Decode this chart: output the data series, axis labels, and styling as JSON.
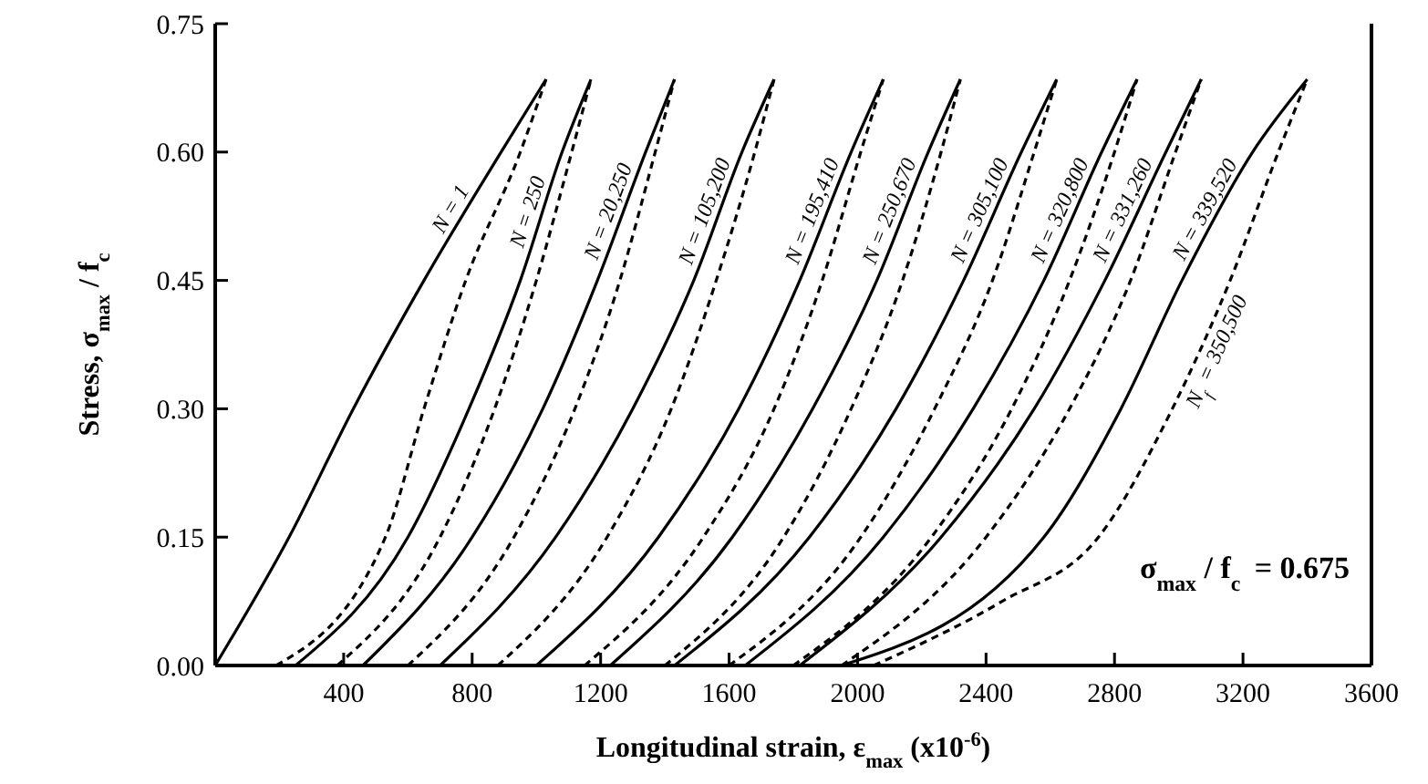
{
  "chart_data": {
    "type": "line",
    "xlabel": "Longitudinal strain, ε$_{max}$ (x10$^{-6}$)",
    "ylabel": "Stress, σ$_{max}$ / f$_{c}$",
    "xlim": [
      0,
      3600
    ],
    "xticks": [
      400,
      800,
      1200,
      1600,
      2000,
      2400,
      2800,
      3200,
      3600
    ],
    "ylim": [
      0,
      0.75
    ],
    "yticks": [
      {
        "value": 0,
        "label": "0.00"
      },
      {
        "value": 0.15,
        "label": "0.15"
      },
      {
        "value": 0.3,
        "label": "0.30"
      },
      {
        "value": 0.45,
        "label": "0.45"
      },
      {
        "value": 0.6,
        "label": "0.60"
      },
      {
        "value": 0.75,
        "label": "0.75"
      }
    ],
    "grid": false,
    "marker": "none",
    "annotations": [
      "σ$_{max}$ / f$_{c}$ = 0.675"
    ],
    "series": [
      {
        "name": "N = 1",
        "color": "#000000",
        "line_style": "solid",
        "x": [
          0,
          230,
          430,
          650,
          890,
          1030
        ],
        "values": [
          0,
          0.15,
          0.3,
          0.45,
          0.6,
          0.685
        ]
      },
      {
        "color": "#000000",
        "line_style": "dashed",
        "x": [
          190,
          530,
          650,
          780,
          950,
          1030
        ],
        "values": [
          0,
          0.15,
          0.3,
          0.45,
          0.6,
          0.685
        ]
      },
      {
        "name": "N = 250",
        "color": "#000000",
        "line_style": "solid",
        "x": [
          250,
          600,
          790,
          950,
          1080,
          1170
        ],
        "values": [
          0,
          0.15,
          0.3,
          0.45,
          0.6,
          0.685
        ]
      },
      {
        "color": "#000000",
        "line_style": "dashed",
        "x": [
          380,
          700,
          870,
          1000,
          1110,
          1170
        ],
        "values": [
          0,
          0.15,
          0.3,
          0.45,
          0.6,
          0.685
        ]
      },
      {
        "name": "N = 20,250",
        "color": "#000000",
        "line_style": "solid",
        "x": [
          460,
          800,
          1020,
          1190,
          1340,
          1430
        ],
        "values": [
          0,
          0.15,
          0.3,
          0.45,
          0.6,
          0.685
        ]
      },
      {
        "color": "#000000",
        "line_style": "dashed",
        "x": [
          600,
          930,
          1120,
          1260,
          1370,
          1430
        ],
        "values": [
          0,
          0.15,
          0.3,
          0.45,
          0.6,
          0.685
        ]
      },
      {
        "name": "N = 105,200",
        "color": "#000000",
        "line_style": "solid",
        "x": [
          700,
          1060,
          1300,
          1490,
          1640,
          1740
        ],
        "values": [
          0,
          0.15,
          0.3,
          0.45,
          0.6,
          0.685
        ]
      },
      {
        "color": "#000000",
        "line_style": "dashed",
        "x": [
          880,
          1220,
          1420,
          1560,
          1680,
          1740
        ],
        "values": [
          0,
          0.15,
          0.3,
          0.45,
          0.6,
          0.685
        ]
      },
      {
        "name": "N = 195,410",
        "color": "#000000",
        "line_style": "solid",
        "x": [
          1000,
          1380,
          1630,
          1820,
          1980,
          2080
        ],
        "values": [
          0,
          0.15,
          0.3,
          0.45,
          0.6,
          0.685
        ]
      },
      {
        "color": "#000000",
        "line_style": "dashed",
        "x": [
          1150,
          1520,
          1740,
          1890,
          2010,
          2080
        ],
        "values": [
          0,
          0.15,
          0.3,
          0.45,
          0.6,
          0.685
        ]
      },
      {
        "name": "N = 250,670",
        "color": "#000000",
        "line_style": "solid",
        "x": [
          1230,
          1610,
          1860,
          2060,
          2220,
          2320
        ],
        "values": [
          0,
          0.15,
          0.3,
          0.45,
          0.6,
          0.685
        ]
      },
      {
        "color": "#000000",
        "line_style": "dashed",
        "x": [
          1400,
          1770,
          1980,
          2140,
          2260,
          2320
        ],
        "values": [
          0,
          0.15,
          0.3,
          0.45,
          0.6,
          0.685
        ]
      },
      {
        "name": "N = 305,100",
        "color": "#000000",
        "line_style": "solid",
        "x": [
          1430,
          1850,
          2120,
          2330,
          2510,
          2620
        ],
        "values": [
          0,
          0.15,
          0.3,
          0.45,
          0.6,
          0.685
        ]
      },
      {
        "color": "#000000",
        "line_style": "dashed",
        "x": [
          1600,
          2010,
          2240,
          2420,
          2550,
          2620
        ],
        "values": [
          0,
          0.15,
          0.3,
          0.45,
          0.6,
          0.685
        ]
      },
      {
        "name": "N = 320,800",
        "color": "#000000",
        "line_style": "solid",
        "x": [
          1650,
          2080,
          2360,
          2580,
          2760,
          2870
        ],
        "values": [
          0,
          0.15,
          0.3,
          0.45,
          0.6,
          0.685
        ]
      },
      {
        "color": "#000000",
        "line_style": "dashed",
        "x": [
          1800,
          2230,
          2480,
          2660,
          2800,
          2870
        ],
        "values": [
          0,
          0.15,
          0.3,
          0.45,
          0.6,
          0.685
        ]
      },
      {
        "name": "N = 331,260",
        "color": "#000000",
        "line_style": "solid",
        "x": [
          1820,
          2260,
          2550,
          2770,
          2960,
          3070
        ],
        "values": [
          0,
          0.15,
          0.3,
          0.45,
          0.6,
          0.685
        ]
      },
      {
        "color": "#000000",
        "line_style": "dashed",
        "x": [
          1950,
          2400,
          2660,
          2850,
          2990,
          3070
        ],
        "values": [
          0,
          0.15,
          0.3,
          0.45,
          0.6,
          0.685
        ]
      },
      {
        "name": "N = 339,520",
        "color": "#000000",
        "line_style": "solid",
        "x": [
          1950,
          2580,
          2820,
          3010,
          3230,
          3400
        ],
        "values": [
          0,
          0.15,
          0.3,
          0.45,
          0.6,
          0.685
        ]
      },
      {
        "name": "N$_{f}$ = 350,500",
        "color": "#000000",
        "line_style": "dashed",
        "x": [
          2050,
          2450,
          2750,
          2980,
          3160,
          3310,
          3400
        ],
        "values": [
          0,
          0.075,
          0.15,
          0.3,
          0.45,
          0.6,
          0.685
        ]
      }
    ]
  }
}
